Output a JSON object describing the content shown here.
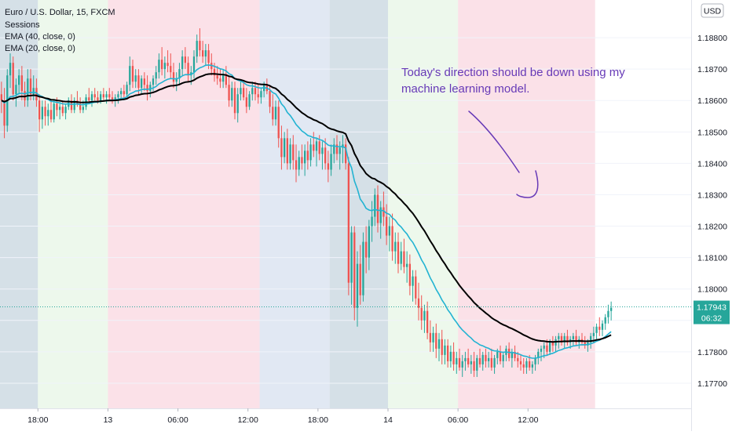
{
  "header": {
    "symbol_title": "Euro / U.S. Dollar, 15, FXCM",
    "indicators": [
      "Sessions",
      "EMA (40, close, 0)",
      "EMA (20, close, 0)"
    ]
  },
  "currency_button": "USD",
  "annotation": {
    "lines": [
      "Today's direction should be down using my",
      "machine learning model."
    ]
  },
  "last_price": {
    "value": "1.17943",
    "countdown": "06:32"
  },
  "colors": {
    "bull": "#26a69a",
    "bear": "#ef5350",
    "ema40": "#000000",
    "ema20": "#22b3d2",
    "annotation": "#673ab7",
    "session_asia": "#b3c6d4",
    "session_london": "#c9d6ea",
    "session_ny": "#f8c9d6",
    "session_quiet": "#dff3dc"
  },
  "chart_data": {
    "type": "candlestick",
    "title": "Euro / U.S. Dollar, 15, FXCM",
    "ylim": [
      1.1762,
      1.1892
    ],
    "y_ticks": [
      "1.18800",
      "1.18700",
      "1.18600",
      "1.18500",
      "1.18400",
      "1.18300",
      "1.18200",
      "1.18100",
      "1.18000",
      "1.17900",
      "1.17800",
      "1.17700"
    ],
    "x_ticks": [
      "18:00",
      "13",
      "06:00",
      "12:00",
      "18:00",
      "14",
      "06:00",
      "12:00"
    ],
    "sessions": [
      {
        "type": "asia",
        "start": 0,
        "end": 13
      },
      {
        "type": "quiet",
        "start": 13,
        "end": 37
      },
      {
        "type": "ny",
        "start": 37,
        "end": 89
      },
      {
        "type": "london",
        "start": 89,
        "end": 113
      },
      {
        "type": "asia",
        "start": 113,
        "end": 133
      },
      {
        "type": "quiet",
        "start": 133,
        "end": 157
      },
      {
        "type": "ny",
        "start": 157,
        "end": 204
      }
    ],
    "candles": [
      [
        1.1862,
        1.1866,
        1.1856,
        1.186
      ],
      [
        1.186,
        1.1864,
        1.1848,
        1.1852
      ],
      [
        1.1852,
        1.187,
        1.185,
        1.1868
      ],
      [
        1.1868,
        1.1875,
        1.1864,
        1.1872
      ],
      [
        1.1872,
        1.1874,
        1.186,
        1.1862
      ],
      [
        1.1862,
        1.1867,
        1.1858,
        1.1865
      ],
      [
        1.1865,
        1.187,
        1.1862,
        1.1868
      ],
      [
        1.1868,
        1.1871,
        1.186,
        1.1863
      ],
      [
        1.1863,
        1.1866,
        1.1858,
        1.186
      ],
      [
        1.186,
        1.187,
        1.1858,
        1.1867
      ],
      [
        1.1867,
        1.187,
        1.186,
        1.1862
      ],
      [
        1.1862,
        1.1868,
        1.186,
        1.1864
      ],
      [
        1.1864,
        1.1867,
        1.1858,
        1.186
      ],
      [
        1.186,
        1.1862,
        1.185,
        1.1854
      ],
      [
        1.1854,
        1.186,
        1.1851,
        1.1858
      ],
      [
        1.1858,
        1.186,
        1.1852,
        1.1855
      ],
      [
        1.1855,
        1.1859,
        1.1852,
        1.1857
      ],
      [
        1.1857,
        1.186,
        1.1853,
        1.1854
      ],
      [
        1.1854,
        1.186,
        1.1853,
        1.1859
      ],
      [
        1.1859,
        1.1861,
        1.1855,
        1.1857
      ],
      [
        1.1857,
        1.1859,
        1.1854,
        1.1858
      ],
      [
        1.1858,
        1.186,
        1.1855,
        1.1856
      ],
      [
        1.1856,
        1.1859,
        1.1854,
        1.1858
      ],
      [
        1.1858,
        1.1861,
        1.1857,
        1.186
      ],
      [
        1.186,
        1.1862,
        1.1856,
        1.1857
      ],
      [
        1.1857,
        1.1861,
        1.1856,
        1.186
      ],
      [
        1.186,
        1.1863,
        1.1858,
        1.1859
      ],
      [
        1.1859,
        1.1861,
        1.1856,
        1.1857
      ],
      [
        1.1857,
        1.186,
        1.1856,
        1.1858
      ],
      [
        1.1858,
        1.1862,
        1.1857,
        1.1861
      ],
      [
        1.1861,
        1.1864,
        1.1859,
        1.186
      ],
      [
        1.186,
        1.1863,
        1.1858,
        1.1862
      ],
      [
        1.1862,
        1.1864,
        1.186,
        1.1861
      ],
      [
        1.1861,
        1.1863,
        1.1859,
        1.186
      ],
      [
        1.186,
        1.1863,
        1.1859,
        1.1862
      ],
      [
        1.1862,
        1.1864,
        1.186,
        1.1861
      ],
      [
        1.1861,
        1.1863,
        1.1859,
        1.1862
      ],
      [
        1.1862,
        1.1864,
        1.186,
        1.1861
      ],
      [
        1.1861,
        1.1863,
        1.1859,
        1.186
      ],
      [
        1.186,
        1.1862,
        1.1858,
        1.1861
      ],
      [
        1.1861,
        1.1863,
        1.1859,
        1.1862
      ],
      [
        1.1862,
        1.1864,
        1.186,
        1.1863
      ],
      [
        1.1863,
        1.1865,
        1.1861,
        1.1862
      ],
      [
        1.1862,
        1.1866,
        1.1861,
        1.1865
      ],
      [
        1.1865,
        1.1874,
        1.1863,
        1.1871
      ],
      [
        1.1871,
        1.1873,
        1.1864,
        1.1866
      ],
      [
        1.1866,
        1.187,
        1.1864,
        1.1868
      ],
      [
        1.1868,
        1.187,
        1.1862,
        1.1864
      ],
      [
        1.1864,
        1.1868,
        1.1862,
        1.1867
      ],
      [
        1.1867,
        1.1869,
        1.1863,
        1.1865
      ],
      [
        1.1865,
        1.1868,
        1.186,
        1.1863
      ],
      [
        1.1863,
        1.1866,
        1.1861,
        1.1865
      ],
      [
        1.1865,
        1.1868,
        1.1863,
        1.1867
      ],
      [
        1.1867,
        1.1871,
        1.1865,
        1.1869
      ],
      [
        1.1869,
        1.1875,
        1.1867,
        1.1873
      ],
      [
        1.1873,
        1.1877,
        1.1868,
        1.187
      ],
      [
        1.187,
        1.1874,
        1.1867,
        1.1872
      ],
      [
        1.1872,
        1.1876,
        1.1869,
        1.1871
      ],
      [
        1.1871,
        1.1875,
        1.1867,
        1.1869
      ],
      [
        1.1869,
        1.1872,
        1.1864,
        1.1866
      ],
      [
        1.1866,
        1.1869,
        1.1863,
        1.1867
      ],
      [
        1.1867,
        1.1872,
        1.1865,
        1.187
      ],
      [
        1.187,
        1.1876,
        1.1868,
        1.1874
      ],
      [
        1.1874,
        1.1877,
        1.187,
        1.1872
      ],
      [
        1.1872,
        1.1874,
        1.1866,
        1.1868
      ],
      [
        1.1868,
        1.1871,
        1.1865,
        1.1869
      ],
      [
        1.1869,
        1.1876,
        1.1867,
        1.1874
      ],
      [
        1.1874,
        1.1881,
        1.1872,
        1.1879
      ],
      [
        1.1879,
        1.1883,
        1.1874,
        1.1876
      ],
      [
        1.1876,
        1.1879,
        1.1872,
        1.1874
      ],
      [
        1.1874,
        1.1878,
        1.1871,
        1.1876
      ],
      [
        1.1876,
        1.1878,
        1.187,
        1.1872
      ],
      [
        1.1872,
        1.1875,
        1.1868,
        1.187
      ],
      [
        1.187,
        1.1872,
        1.1866,
        1.1868
      ],
      [
        1.1868,
        1.1871,
        1.1865,
        1.1867
      ],
      [
        1.1867,
        1.187,
        1.1864,
        1.1866
      ],
      [
        1.1866,
        1.187,
        1.1864,
        1.1868
      ],
      [
        1.1868,
        1.1871,
        1.1864,
        1.1865
      ],
      [
        1.1865,
        1.1868,
        1.1858,
        1.186
      ],
      [
        1.186,
        1.1866,
        1.1858,
        1.1864
      ],
      [
        1.1864,
        1.1866,
        1.1854,
        1.1856
      ],
      [
        1.1856,
        1.1864,
        1.1853,
        1.1862
      ],
      [
        1.1862,
        1.1866,
        1.186,
        1.1864
      ],
      [
        1.1864,
        1.1866,
        1.186,
        1.1861
      ],
      [
        1.1861,
        1.1864,
        1.1856,
        1.1858
      ],
      [
        1.1858,
        1.1863,
        1.1857,
        1.1862
      ],
      [
        1.1862,
        1.1866,
        1.186,
        1.1864
      ],
      [
        1.1864,
        1.1866,
        1.186,
        1.1862
      ],
      [
        1.1862,
        1.1865,
        1.1859,
        1.1861
      ],
      [
        1.1861,
        1.1864,
        1.1859,
        1.1863
      ],
      [
        1.1863,
        1.1866,
        1.1861,
        1.1865
      ],
      [
        1.1865,
        1.1867,
        1.1862,
        1.1863
      ],
      [
        1.1863,
        1.1865,
        1.1856,
        1.1858
      ],
      [
        1.1858,
        1.1862,
        1.1852,
        1.1854
      ],
      [
        1.1854,
        1.186,
        1.1852,
        1.1858
      ],
      [
        1.1858,
        1.186,
        1.1845,
        1.1848
      ],
      [
        1.1848,
        1.1852,
        1.1838,
        1.1842
      ],
      [
        1.1842,
        1.185,
        1.184,
        1.1848
      ],
      [
        1.1848,
        1.1851,
        1.1838,
        1.184
      ],
      [
        1.184,
        1.1848,
        1.1838,
        1.1846
      ],
      [
        1.1846,
        1.1849,
        1.1838,
        1.1841
      ],
      [
        1.1841,
        1.1846,
        1.1834,
        1.1838
      ],
      [
        1.1838,
        1.1844,
        1.1836,
        1.1842
      ],
      [
        1.1842,
        1.1846,
        1.1838,
        1.184
      ],
      [
        1.184,
        1.1846,
        1.1836,
        1.1844
      ],
      [
        1.1844,
        1.1847,
        1.1838,
        1.1841
      ],
      [
        1.1841,
        1.1848,
        1.1839,
        1.1846
      ],
      [
        1.1846,
        1.185,
        1.1842,
        1.1844
      ],
      [
        1.1844,
        1.1848,
        1.1839,
        1.1847
      ],
      [
        1.1847,
        1.1849,
        1.1841,
        1.1843
      ],
      [
        1.1843,
        1.1847,
        1.1838,
        1.1845
      ],
      [
        1.1845,
        1.1848,
        1.1838,
        1.184
      ],
      [
        1.184,
        1.1844,
        1.1834,
        1.1838
      ],
      [
        1.1838,
        1.1846,
        1.1836,
        1.1843
      ],
      [
        1.1843,
        1.1848,
        1.184,
        1.1846
      ],
      [
        1.1846,
        1.1849,
        1.1841,
        1.1843
      ],
      [
        1.1843,
        1.1847,
        1.1838,
        1.1845
      ],
      [
        1.1845,
        1.1849,
        1.184,
        1.1846
      ],
      [
        1.1846,
        1.1848,
        1.1838,
        1.184
      ],
      [
        1.184,
        1.1842,
        1.1798,
        1.1802
      ],
      [
        1.1802,
        1.182,
        1.1795,
        1.1818
      ],
      [
        1.1818,
        1.182,
        1.179,
        1.1794
      ],
      [
        1.1794,
        1.1812,
        1.1788,
        1.1808
      ],
      [
        1.1808,
        1.1814,
        1.1795,
        1.1798
      ],
      [
        1.1798,
        1.1818,
        1.1796,
        1.1815
      ],
      [
        1.1815,
        1.182,
        1.1805,
        1.181
      ],
      [
        1.181,
        1.1822,
        1.1806,
        1.182
      ],
      [
        1.182,
        1.1828,
        1.1815,
        1.1823
      ],
      [
        1.1823,
        1.1832,
        1.182,
        1.183
      ],
      [
        1.183,
        1.1833,
        1.1818,
        1.1821
      ],
      [
        1.1821,
        1.1828,
        1.1816,
        1.1826
      ],
      [
        1.1826,
        1.1831,
        1.182,
        1.1823
      ],
      [
        1.1823,
        1.1827,
        1.1814,
        1.1817
      ],
      [
        1.1817,
        1.1823,
        1.1812,
        1.182
      ],
      [
        1.182,
        1.1824,
        1.1809,
        1.1812
      ],
      [
        1.1812,
        1.1818,
        1.1808,
        1.1815
      ],
      [
        1.1815,
        1.1818,
        1.1805,
        1.1808
      ],
      [
        1.1808,
        1.1815,
        1.1806,
        1.1812
      ],
      [
        1.1812,
        1.1816,
        1.1805,
        1.1807
      ],
      [
        1.1807,
        1.1812,
        1.1802,
        1.1808
      ],
      [
        1.1808,
        1.1811,
        1.1798,
        1.1801
      ],
      [
        1.1801,
        1.1806,
        1.1796,
        1.1804
      ],
      [
        1.1804,
        1.1806,
        1.1795,
        1.1797
      ],
      [
        1.1797,
        1.1802,
        1.179,
        1.1794
      ],
      [
        1.1794,
        1.1798,
        1.1787,
        1.179
      ],
      [
        1.179,
        1.1795,
        1.1786,
        1.1793
      ],
      [
        1.1793,
        1.1796,
        1.1784,
        1.1786
      ],
      [
        1.1786,
        1.179,
        1.178,
        1.1783
      ],
      [
        1.1783,
        1.1788,
        1.178,
        1.1786
      ],
      [
        1.1786,
        1.1789,
        1.1778,
        1.1781
      ],
      [
        1.1781,
        1.1786,
        1.1777,
        1.1784
      ],
      [
        1.1784,
        1.1787,
        1.1776,
        1.1779
      ],
      [
        1.1779,
        1.1784,
        1.1776,
        1.1782
      ],
      [
        1.1782,
        1.1784,
        1.1775,
        1.1777
      ],
      [
        1.1777,
        1.1782,
        1.1775,
        1.178
      ],
      [
        1.178,
        1.1783,
        1.1774,
        1.1776
      ],
      [
        1.1776,
        1.178,
        1.1773,
        1.1778
      ],
      [
        1.1778,
        1.1781,
        1.1774,
        1.1775
      ],
      [
        1.1775,
        1.1779,
        1.1772,
        1.1777
      ],
      [
        1.1777,
        1.178,
        1.1774,
        1.1778
      ],
      [
        1.1778,
        1.1781,
        1.1775,
        1.1776
      ],
      [
        1.1776,
        1.1779,
        1.1773,
        1.1777
      ],
      [
        1.1777,
        1.178,
        1.1772,
        1.1774
      ],
      [
        1.1774,
        1.1779,
        1.1772,
        1.1778
      ],
      [
        1.1778,
        1.1781,
        1.1775,
        1.1776
      ],
      [
        1.1776,
        1.178,
        1.1774,
        1.1779
      ],
      [
        1.1779,
        1.1781,
        1.1775,
        1.1777
      ],
      [
        1.1777,
        1.178,
        1.1775,
        1.1778
      ],
      [
        1.1778,
        1.1781,
        1.1774,
        1.1775
      ],
      [
        1.1775,
        1.1779,
        1.1773,
        1.1778
      ],
      [
        1.1778,
        1.1781,
        1.1776,
        1.178
      ],
      [
        1.178,
        1.1782,
        1.1776,
        1.1777
      ],
      [
        1.1777,
        1.178,
        1.1775,
        1.1779
      ],
      [
        1.1779,
        1.1782,
        1.1777,
        1.1781
      ],
      [
        1.1781,
        1.1783,
        1.1777,
        1.1778
      ],
      [
        1.1778,
        1.1781,
        1.1775,
        1.178
      ],
      [
        1.178,
        1.1782,
        1.1777,
        1.1778
      ],
      [
        1.1778,
        1.178,
        1.1775,
        1.1777
      ],
      [
        1.1777,
        1.1779,
        1.1774,
        1.1776
      ],
      [
        1.1776,
        1.1778,
        1.1773,
        1.1775
      ],
      [
        1.1775,
        1.1778,
        1.1773,
        1.1777
      ],
      [
        1.1777,
        1.1779,
        1.1774,
        1.1775
      ],
      [
        1.1775,
        1.1777,
        1.1773,
        1.1776
      ],
      [
        1.1776,
        1.1779,
        1.1774,
        1.1778
      ],
      [
        1.1778,
        1.1781,
        1.1776,
        1.178
      ],
      [
        1.178,
        1.1782,
        1.1777,
        1.1781
      ],
      [
        1.1781,
        1.1783,
        1.1778,
        1.1782
      ],
      [
        1.1782,
        1.1784,
        1.1779,
        1.178
      ],
      [
        1.178,
        1.1784,
        1.1779,
        1.1783
      ],
      [
        1.1783,
        1.1785,
        1.178,
        1.1782
      ],
      [
        1.1782,
        1.1785,
        1.178,
        1.1784
      ],
      [
        1.1784,
        1.1786,
        1.1781,
        1.1785
      ],
      [
        1.1785,
        1.1786,
        1.1782,
        1.1783
      ],
      [
        1.1783,
        1.1786,
        1.1781,
        1.1785
      ],
      [
        1.1785,
        1.1787,
        1.1782,
        1.1783
      ],
      [
        1.1783,
        1.1785,
        1.1781,
        1.1784
      ],
      [
        1.1784,
        1.1786,
        1.1782,
        1.1785
      ],
      [
        1.1785,
        1.1787,
        1.1782,
        1.1783
      ],
      [
        1.1783,
        1.1785,
        1.1781,
        1.1784
      ],
      [
        1.1784,
        1.1786,
        1.1782,
        1.1783
      ],
      [
        1.1783,
        1.1785,
        1.1781,
        1.1782
      ],
      [
        1.1782,
        1.1784,
        1.178,
        1.1783
      ],
      [
        1.1783,
        1.1786,
        1.1781,
        1.1785
      ],
      [
        1.1785,
        1.1788,
        1.1783,
        1.1786
      ],
      [
        1.1786,
        1.1789,
        1.1784,
        1.1788
      ],
      [
        1.1788,
        1.1791,
        1.1785,
        1.1787
      ],
      [
        1.1787,
        1.179,
        1.1785,
        1.1789
      ],
      [
        1.1789,
        1.1792,
        1.1787,
        1.1791
      ],
      [
        1.1791,
        1.1795,
        1.1789,
        1.1793
      ],
      [
        1.1793,
        1.1796,
        1.179,
        1.1794
      ]
    ],
    "ema_series": [
      {
        "name": "EMA (40, close, 0)",
        "color": "#000000"
      },
      {
        "name": "EMA (20, close, 0)",
        "color": "#22b3d2"
      }
    ],
    "last_value": 1.17943
  }
}
